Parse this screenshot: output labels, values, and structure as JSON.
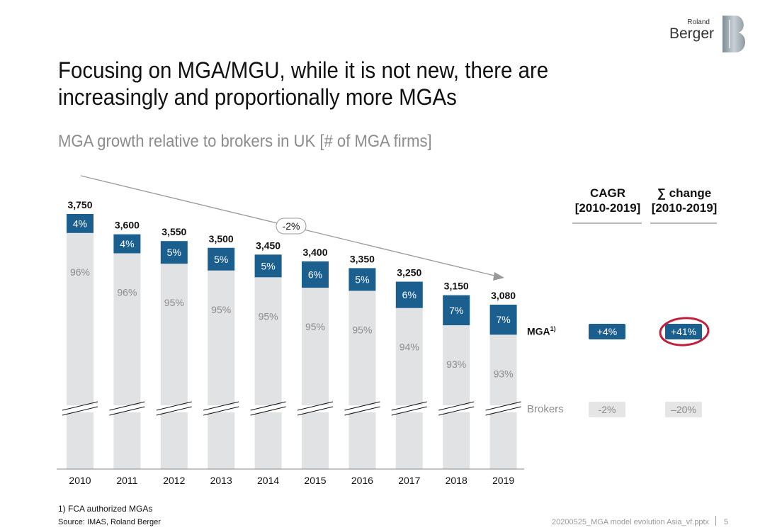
{
  "brand": {
    "small": "Roland",
    "big": "Berger"
  },
  "title": "Focusing on MGA/MGU, while it is not new, there are increasingly and proportionally more MGAs",
  "subtitle": "MGA growth relative to brokers in UK [# of MGA firms]",
  "trend_label": "-2%",
  "table": {
    "col1_header_line1": "CAGR",
    "col1_header_line2": "[2010-2019]",
    "col2_header_line1": "∑ change",
    "col2_header_line2": "[2010-2019]",
    "mga_label": "MGA",
    "mga_footnote_marker": "1)",
    "brokers_label": "Brokers",
    "mga_cagr": "+4%",
    "mga_change": "+41%",
    "brokers_cagr": "-2%",
    "brokers_change": "–20%"
  },
  "colors": {
    "mga": "#1b5f8f",
    "brokers": "#e1e2e4",
    "highlight_circle": "#c0203a"
  },
  "chart_data": {
    "type": "bar",
    "stacked": true,
    "axis_break": true,
    "categories": [
      "2010",
      "2011",
      "2012",
      "2013",
      "2014",
      "2015",
      "2016",
      "2017",
      "2018",
      "2019"
    ],
    "totals": [
      3750,
      3600,
      3550,
      3500,
      3450,
      3400,
      3350,
      3250,
      3150,
      3080
    ],
    "total_labels": [
      "3,750",
      "3,600",
      "3,550",
      "3,500",
      "3,450",
      "3,400",
      "3,350",
      "3,250",
      "3,150",
      "3,080"
    ],
    "series": [
      {
        "name": "Brokers",
        "percent_labels": [
          "96%",
          "96%",
          "95%",
          "95%",
          "95%",
          "95%",
          "95%",
          "94%",
          "93%",
          "93%"
        ]
      },
      {
        "name": "MGA",
        "percent_labels": [
          "4%",
          "4%",
          "5%",
          "5%",
          "5%",
          "6%",
          "5%",
          "6%",
          "7%",
          "7%"
        ]
      }
    ],
    "ylim": [
      0,
      3800
    ]
  },
  "footnote": "1) FCA authorized MGAs",
  "source": "Source: IMAS, Roland Berger",
  "file_name": "20200525_MGA model evolution Asia_vf.pptx",
  "page_number": "5"
}
